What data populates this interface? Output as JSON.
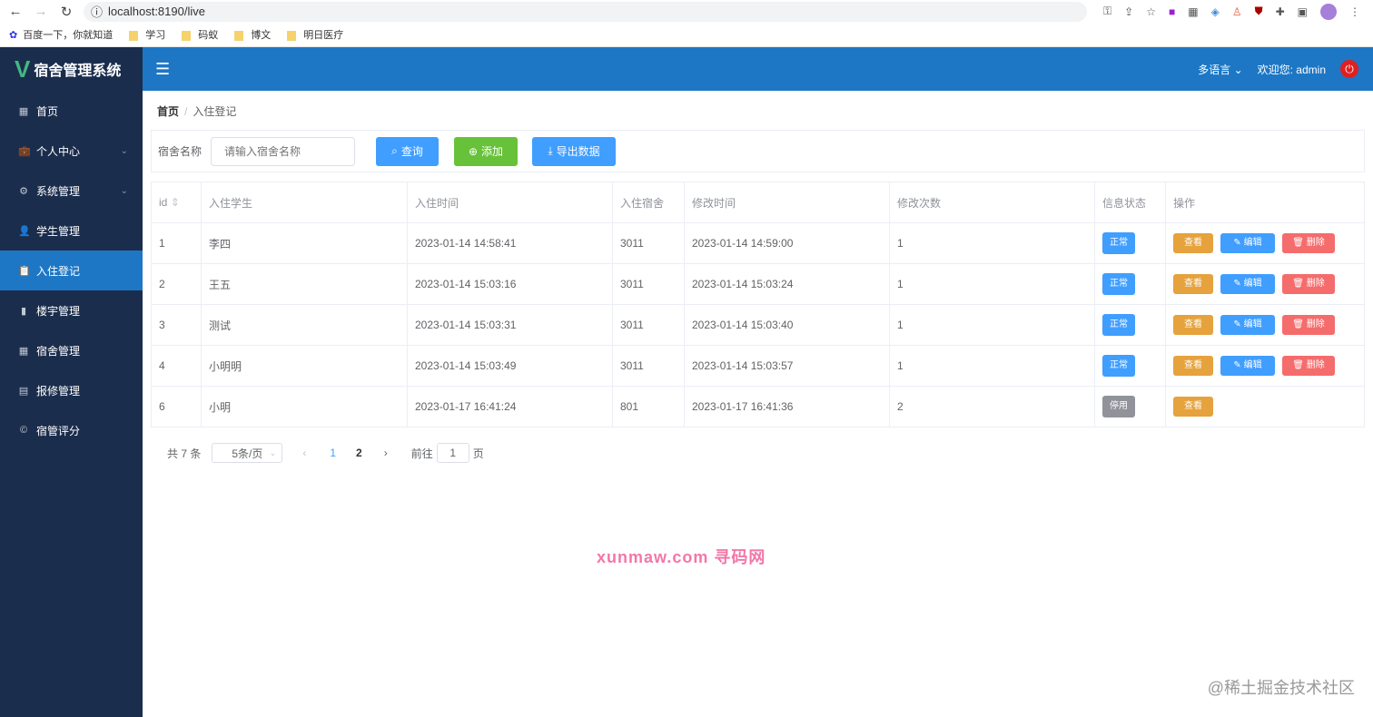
{
  "browser": {
    "url": "localhost:8190/live",
    "bookmarks": [
      "百度一下，你就知道",
      "学习",
      "码蚁",
      "博文",
      "明日医疗"
    ]
  },
  "app": {
    "title": "宿舍管理系统",
    "language": "多语言",
    "welcome": "欢迎您: admin"
  },
  "sidebar": {
    "items": [
      {
        "label": "首页",
        "icon": "grid-icon"
      },
      {
        "label": "个人中心",
        "icon": "suitcase-icon",
        "expandable": true
      },
      {
        "label": "系统管理",
        "icon": "gear-icon",
        "expandable": true
      },
      {
        "label": "学生管理",
        "icon": "user-icon"
      },
      {
        "label": "入住登记",
        "icon": "clipboard-icon",
        "active": true
      },
      {
        "label": "楼宇管理",
        "icon": "bar-chart-icon"
      },
      {
        "label": "宿舍管理",
        "icon": "grid-icon"
      },
      {
        "label": "报修管理",
        "icon": "document-icon"
      },
      {
        "label": "宿管评分",
        "icon": "copyright-icon"
      }
    ]
  },
  "breadcrumb": {
    "home": "首页",
    "current": "入住登记"
  },
  "search": {
    "label": "宿舍名称",
    "placeholder": "请输入宿舍名称",
    "query": "查询",
    "add": "添加",
    "export": "导出数据"
  },
  "table": {
    "headers": [
      "id",
      "入住学生",
      "入住时间",
      "入住宿舍",
      "修改时间",
      "修改次数",
      "信息状态",
      "操作"
    ],
    "rows": [
      {
        "id": "1",
        "student": "李四",
        "in_time": "2023-01-14 14:58:41",
        "dorm": "3011",
        "mod_time": "2023-01-14 14:59:00",
        "count": "1",
        "status": "正常"
      },
      {
        "id": "2",
        "student": "王五",
        "in_time": "2023-01-14 15:03:16",
        "dorm": "3011",
        "mod_time": "2023-01-14 15:03:24",
        "count": "1",
        "status": "正常"
      },
      {
        "id": "3",
        "student": "测试",
        "in_time": "2023-01-14 15:03:31",
        "dorm": "3011",
        "mod_time": "2023-01-14 15:03:40",
        "count": "1",
        "status": "正常"
      },
      {
        "id": "4",
        "student": "小明明",
        "in_time": "2023-01-14 15:03:49",
        "dorm": "3011",
        "mod_time": "2023-01-14 15:03:57",
        "count": "1",
        "status": "正常"
      },
      {
        "id": "6",
        "student": "小明",
        "in_time": "2023-01-17 16:41:24",
        "dorm": "801",
        "mod_time": "2023-01-17 16:41:36",
        "count": "2",
        "status": "停用"
      }
    ],
    "actions": {
      "view": "查看",
      "edit": "编辑",
      "delete": "删除"
    }
  },
  "pagination": {
    "total": "共 7 条",
    "page_size": "5条/页",
    "pages": [
      "1",
      "2"
    ],
    "current": "1",
    "goto": "前往",
    "goto_value": "1",
    "page_unit": "页"
  },
  "colors": {
    "sidebar": "#1b2d4c",
    "header": "#1e77c5",
    "primary": "#409eff",
    "success": "#67c23a",
    "warning": "#e6a23c",
    "danger": "#f56c6c",
    "disabled": "#909399"
  },
  "watermarks": [
    "xunmaw.com 寻码网",
    "@稀土掘金技术社区"
  ]
}
